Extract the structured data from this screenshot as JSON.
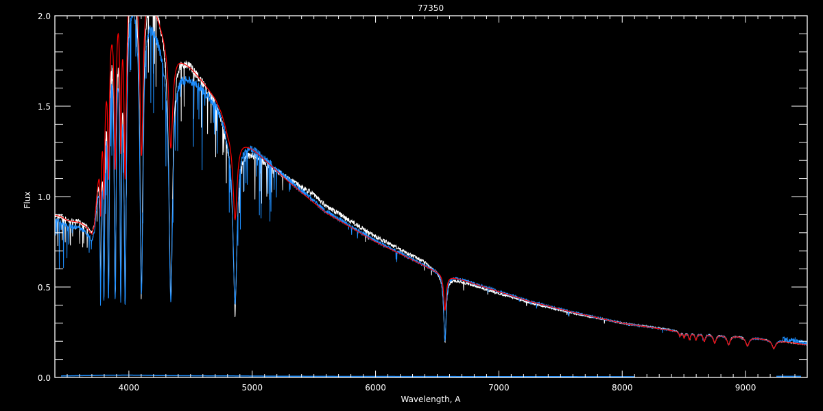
{
  "chart_data": {
    "type": "line",
    "title": "77350",
    "xlabel": "Wavelength, A",
    "ylabel": "Flux",
    "xlim": [
      3400,
      9500
    ],
    "ylim": [
      0.0,
      2.0
    ],
    "x_ticks": [
      "4000",
      "5000",
      "6000",
      "7000",
      "8000",
      "9000"
    ],
    "x_minor_step": 100,
    "y_ticks": [
      "0.0",
      "0.5",
      "1.0",
      "1.5",
      "2.0"
    ],
    "y_minor_step": 0.1,
    "grid": false,
    "background": "#000000",
    "axis_color": "#ffffff",
    "series": [
      {
        "color": "#ffffff",
        "role": "observed spectrum (white)",
        "offset_from_model": [
          [
            3400,
            0
          ],
          [
            4300,
            0.03
          ],
          [
            4900,
            -0.03
          ],
          [
            5200,
            0
          ],
          [
            5500,
            0.045
          ],
          [
            6400,
            0.035
          ],
          [
            6550,
            -0.02
          ],
          [
            7500,
            -0.015
          ],
          [
            8300,
            0.01
          ],
          [
            9500,
            0
          ]
        ]
      },
      {
        "color": "#1e8fff",
        "role": "observed spectrum (blue)",
        "offset_from_model": [
          [
            3400,
            -0.03
          ],
          [
            4300,
            -0.05
          ],
          [
            5000,
            0.01
          ],
          [
            9200,
            0
          ],
          [
            9400,
            0.05
          ],
          [
            9500,
            0.02
          ]
        ]
      },
      {
        "color": "#ff0000",
        "role": "model",
        "offset_from_model": [
          [
            3400,
            0
          ],
          [
            9500,
            0
          ]
        ]
      }
    ],
    "continuum": [
      [
        3400,
        0.9
      ],
      [
        3450,
        0.89
      ],
      [
        3500,
        0.87
      ],
      [
        3600,
        0.86
      ],
      [
        3650,
        0.84
      ],
      [
        3700,
        0.8
      ],
      [
        3720,
        0.85
      ],
      [
        3760,
        1.2
      ],
      [
        3800,
        1.6
      ],
      [
        3850,
        2.0
      ],
      [
        3900,
        2.2
      ],
      [
        4000,
        2.3
      ],
      [
        4100,
        2.25
      ],
      [
        4200,
        2.08
      ],
      [
        4300,
        1.88
      ],
      [
        4350,
        1.8
      ],
      [
        4400,
        1.78
      ],
      [
        4500,
        1.72
      ],
      [
        4600,
        1.64
      ],
      [
        4700,
        1.55
      ],
      [
        4750,
        1.48
      ],
      [
        4800,
        1.38
      ],
      [
        4900,
        1.32
      ],
      [
        5000,
        1.27
      ],
      [
        5300,
        1.08
      ],
      [
        5600,
        0.91
      ],
      [
        6000,
        0.75
      ],
      [
        6450,
        0.6
      ],
      [
        6600,
        0.56
      ],
      [
        6700,
        0.54
      ],
      [
        6950,
        0.485
      ],
      [
        7250,
        0.42
      ],
      [
        7600,
        0.36
      ],
      [
        8000,
        0.3
      ],
      [
        8500,
        0.25
      ],
      [
        9000,
        0.225
      ],
      [
        9300,
        0.2
      ],
      [
        9500,
        0.18
      ]
    ],
    "absorption_lines": [
      {
        "wavelength": 3771,
        "observed_depth": 0.6,
        "model_depth": 0.3,
        "width": 6
      },
      {
        "wavelength": 3798,
        "observed_depth": 0.7,
        "model_depth": 0.35,
        "width": 7
      },
      {
        "wavelength": 3835,
        "observed_depth": 0.75,
        "model_depth": 0.4,
        "width": 8
      },
      {
        "wavelength": 3889,
        "observed_depth": 0.78,
        "model_depth": 0.45,
        "width": 10
      },
      {
        "wavelength": 3934,
        "observed_depth": 0.78,
        "model_depth": 0.4,
        "width": 8
      },
      {
        "wavelength": 3970,
        "observed_depth": 0.8,
        "model_depth": 0.5,
        "width": 12
      },
      {
        "wavelength": 4102,
        "observed_depth": 0.78,
        "model_depth": 0.45,
        "width": 16
      },
      {
        "wavelength": 4340,
        "observed_depth": 0.76,
        "model_depth": 0.3,
        "width": 18
      },
      {
        "wavelength": 4861,
        "observed_depth": 0.7,
        "model_depth": 0.35,
        "width": 20
      },
      {
        "wavelength": 6563,
        "observed_depth": 0.65,
        "model_depth": 0.35,
        "width": 12
      },
      {
        "wavelength": 8467,
        "observed_depth": 0.1,
        "model_depth": 0.1,
        "width": 8
      },
      {
        "wavelength": 8502,
        "observed_depth": 0.12,
        "model_depth": 0.12,
        "width": 8
      },
      {
        "wavelength": 8545,
        "observed_depth": 0.15,
        "model_depth": 0.15,
        "width": 9
      },
      {
        "wavelength": 8598,
        "observed_depth": 0.15,
        "model_depth": 0.15,
        "width": 10
      },
      {
        "wavelength": 8665,
        "observed_depth": 0.17,
        "model_depth": 0.17,
        "width": 11
      },
      {
        "wavelength": 8750,
        "observed_depth": 0.2,
        "model_depth": 0.2,
        "width": 13
      },
      {
        "wavelength": 8863,
        "observed_depth": 0.22,
        "model_depth": 0.22,
        "width": 15
      },
      {
        "wavelength": 9015,
        "observed_depth": 0.22,
        "model_depth": 0.22,
        "width": 17
      },
      {
        "wavelength": 9229,
        "observed_depth": 0.22,
        "model_depth": 0.22,
        "width": 18
      }
    ],
    "error_spectrum": {
      "color": "#1e8fff",
      "segments": [
        [
          [
            3450,
            0.008
          ],
          [
            3800,
            0.012
          ],
          [
            4000,
            0.013
          ],
          [
            4300,
            0.01
          ],
          [
            5500,
            0.006
          ],
          [
            8100,
            0.004
          ]
        ],
        [
          [
            9250,
            0.006
          ],
          [
            9450,
            0.006
          ]
        ]
      ]
    }
  }
}
